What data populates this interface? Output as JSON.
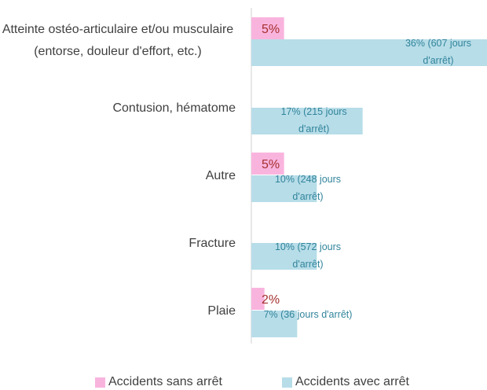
{
  "chart_data": {
    "type": "bar",
    "orientation": "horizontal",
    "categories": [
      "Atteinte ostéo-articulaire et/ou musculaire (entorse, douleur d'effort, etc.)",
      "Contusion, hématome",
      "Autre",
      "Fracture",
      "Plaie"
    ],
    "series": [
      {
        "name": "Accidents sans arrêt",
        "color": "#f9b4de",
        "values": [
          5,
          null,
          5,
          null,
          2
        ],
        "value_labels": [
          "5%",
          null,
          "5%",
          null,
          "2%"
        ]
      },
      {
        "name": "Accidents avec arrêt",
        "color": "#b7dde8",
        "values": [
          36,
          17,
          10,
          10,
          7
        ],
        "value_labels": [
          "36% (607 jours d'arrêt)",
          "17% (215 jours d'arrêt)",
          "10% (248 jours d'arrêt)",
          "10% (572 jours d'arrêt)",
          "7% (36 jours d'arrêt)"
        ]
      }
    ],
    "legend": "bottom"
  }
}
